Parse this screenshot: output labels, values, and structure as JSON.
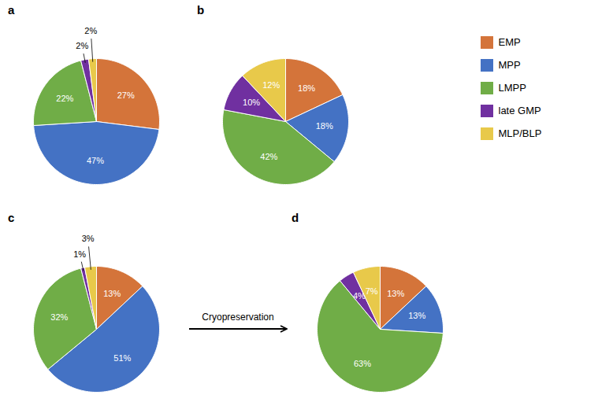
{
  "chart_data": [
    {
      "type": "pie",
      "title": "a",
      "categories": [
        "EMP",
        "MPP",
        "LMPP",
        "late GMP",
        "MLP/BLP"
      ],
      "values": [
        27,
        47,
        22,
        2,
        2
      ],
      "value_labels": [
        "27%",
        "47%",
        "22%",
        "2%",
        "2%"
      ],
      "colors": [
        "#D4743A",
        "#4472C4",
        "#70AD47",
        "#7030A0",
        "#E8C94A"
      ],
      "data_labels": true,
      "legend": "right"
    },
    {
      "type": "pie",
      "title": "b",
      "categories": [
        "EMP",
        "MPP",
        "LMPP",
        "late GMP",
        "MLP/BLP"
      ],
      "values": [
        18,
        18,
        42,
        10,
        12
      ],
      "value_labels": [
        "18%",
        "18%",
        "42%",
        "10%",
        "12%"
      ],
      "colors": [
        "#D4743A",
        "#4472C4",
        "#70AD47",
        "#7030A0",
        "#E8C94A"
      ],
      "data_labels": true
    },
    {
      "type": "pie",
      "title": "c",
      "categories": [
        "EMP",
        "MPP",
        "LMPP",
        "late GMP",
        "MLP/BLP"
      ],
      "values": [
        13,
        51,
        32,
        1,
        3
      ],
      "value_labels": [
        "13%",
        "51%",
        "32%",
        "1%",
        "3%"
      ],
      "colors": [
        "#D4743A",
        "#4472C4",
        "#70AD47",
        "#7030A0",
        "#E8C94A"
      ],
      "data_labels": true
    },
    {
      "type": "pie",
      "title": "d",
      "categories": [
        "EMP",
        "MPP",
        "LMPP",
        "late GMP",
        "MLP/BLP"
      ],
      "values": [
        13,
        13,
        63,
        4,
        7
      ],
      "value_labels": [
        "13%",
        "13%",
        "63%",
        "4%",
        "7%"
      ],
      "colors": [
        "#D4743A",
        "#4472C4",
        "#70AD47",
        "#7030A0",
        "#E8C94A"
      ],
      "data_labels": true,
      "annotation": "Cryopreservation"
    }
  ]
}
